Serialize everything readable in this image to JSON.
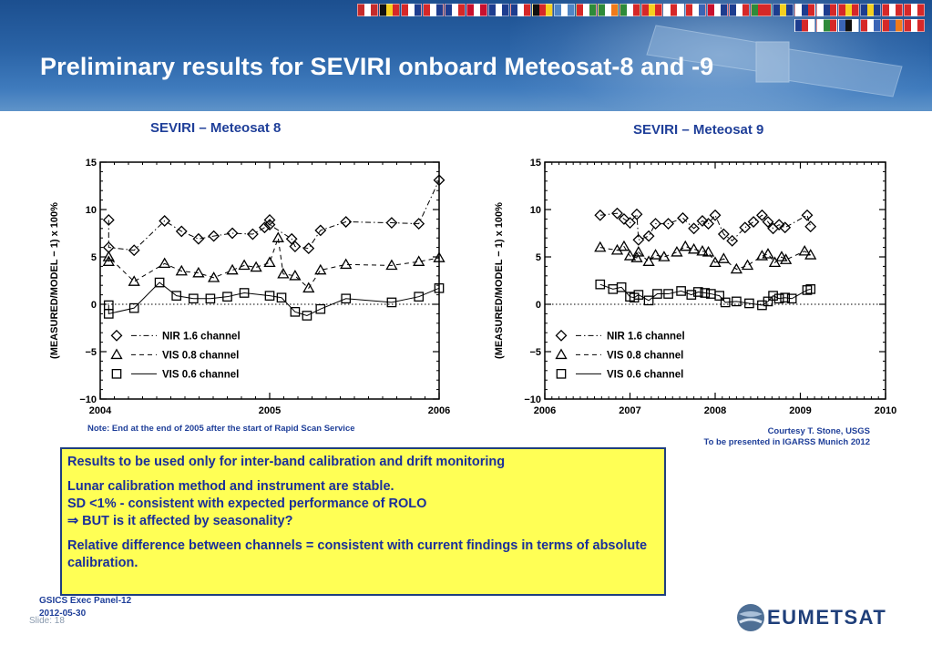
{
  "header": {
    "title": "Preliminary results for SEVIRI onboard Meteosat-8 and -9",
    "flags": [
      [
        "#c62b2b",
        "#ffffff",
        "#c62b2b"
      ],
      [
        "#111111",
        "#f5d020",
        "#d62828"
      ],
      [
        "#d62828",
        "#ffffff",
        "#1d3d8f"
      ],
      [
        "#d62828",
        "#ffffff",
        "#1d3d8f"
      ],
      [
        "#1d3d8f",
        "#ffffff",
        "#d62828"
      ],
      [
        "#c8102e",
        "#ffffff",
        "#c8102e"
      ],
      [
        "#1d3d8f",
        "#ffffff",
        "#1d3d8f"
      ],
      [
        "#1d3d8f",
        "#ffffff",
        "#d62828"
      ],
      [
        "#111111",
        "#d62828",
        "#f5d020"
      ],
      [
        "#4f86c6",
        "#ffffff",
        "#4f86c6"
      ],
      [
        "#d62828",
        "#ffffff",
        "#2e8b3a"
      ],
      [
        "#2e8b3a",
        "#ffffff",
        "#f07a1a"
      ],
      [
        "#2e8b3a",
        "#ffffff",
        "#d62828"
      ],
      [
        "#d62828",
        "#f5d020",
        "#d62828"
      ],
      [
        "#ffffff",
        "#d62828",
        "#ffffff"
      ],
      [
        "#d62828",
        "#ffffff",
        "#3a64b5"
      ],
      [
        "#c8102e",
        "#ffffff",
        "#1d3d8f"
      ],
      [
        "#1d3d8f",
        "#ffffff",
        "#d62828"
      ],
      [
        "#2e8b3a",
        "#d62828",
        "#d62828"
      ],
      [
        "#1d3d8f",
        "#f5d020",
        "#1d3d8f"
      ],
      [
        "#ffffff",
        "#1d3d8f",
        "#d62828"
      ],
      [
        "#ffffff",
        "#1d3d8f",
        "#d62828"
      ],
      [
        "#d62828",
        "#f5d020",
        "#d62828"
      ],
      [
        "#1d3d8f",
        "#f5d020",
        "#1d3d8f"
      ],
      [
        "#d62828",
        "#ffffff",
        "#d62828"
      ],
      [
        "#d62828",
        "#ffffff",
        "#d62828"
      ],
      [
        "#1d3d8f",
        "#d62828",
        "#ffffff"
      ],
      [
        "#ffffff",
        "#2e8b3a",
        "#d62828"
      ],
      [
        "#3a64b5",
        "#111111",
        "#ffffff"
      ],
      [
        "#d62828",
        "#ffffff",
        "#3a64b5"
      ],
      [
        "#d62828",
        "#3a64b5",
        "#f07a1a"
      ],
      [
        "#d62828",
        "#ffffff",
        "#d62828"
      ]
    ]
  },
  "left_panel": {
    "subtitle": "SEVIRI – Meteosat 8",
    "note": "Note: End at the end of 2005 after the start of Rapid Scan Service"
  },
  "right_panel": {
    "subtitle": "SEVIRI – Meteosat 9",
    "courtesy": "Courtesy T. Stone, USGS",
    "presented": "To be presented in IGARSS Munich 2012"
  },
  "textbox": {
    "line1": "Results to be used only for inter-band calibration and drift monitoring",
    "line2": "Lunar calibration method and instrument are stable.",
    "line3": "SD <1% - consistent with expected performance of ROLO",
    "line4": "⇒ BUT is it affected by seasonality?",
    "line5": "Relative difference between channels = consistent with current findings in terms of absolute calibration."
  },
  "footer": {
    "line1": "GSICS Exec Panel-12",
    "line2": "2012-05-30",
    "slide": "Slide: 18",
    "logo": "EUMETSAT"
  },
  "chart_data": [
    {
      "type": "scatter",
      "ylabel": "(MEASURED/MODEL − 1) x 100%",
      "xlim": [
        2004,
        2006
      ],
      "ylim": [
        -10,
        15
      ],
      "xticks": [
        "2004",
        "2005",
        "2006"
      ],
      "yticks": [
        "−10",
        "−5",
        "0",
        "5",
        "10",
        "15"
      ],
      "grid": false,
      "legend_position": "lower-left",
      "series": [
        {
          "name": "NIR 1.6 channel",
          "marker": "diamond",
          "line": "dashdot",
          "x": [
            2004.05,
            2004.05,
            2004.2,
            2004.38,
            2004.48,
            2004.58,
            2004.67,
            2004.78,
            2004.9,
            2004.97,
            2005.0,
            2005.0,
            2005.13,
            2005.15,
            2005.23,
            2005.3,
            2005.45,
            2005.72,
            2005.88,
            2006.0
          ],
          "y": [
            8.9,
            6.0,
            5.7,
            8.8,
            7.7,
            6.9,
            7.2,
            7.5,
            7.4,
            8.1,
            8.9,
            8.4,
            6.9,
            6.1,
            5.9,
            7.8,
            8.7,
            8.6,
            8.5,
            13.1
          ]
        },
        {
          "name": "VIS 0.8 channel",
          "marker": "triangle",
          "line": "dashed",
          "x": [
            2004.05,
            2004.05,
            2004.2,
            2004.38,
            2004.48,
            2004.58,
            2004.67,
            2004.78,
            2004.85,
            2004.92,
            2005.0,
            2005.05,
            2005.08,
            2005.15,
            2005.23,
            2005.3,
            2005.45,
            2005.72,
            2005.88,
            2006.0
          ],
          "y": [
            4.5,
            5.0,
            2.4,
            4.3,
            3.5,
            3.3,
            2.8,
            3.6,
            4.1,
            3.9,
            4.4,
            7.0,
            3.2,
            3.0,
            1.7,
            3.6,
            4.2,
            4.1,
            4.5,
            4.9
          ]
        },
        {
          "name": "VIS 0.6 channel",
          "marker": "square",
          "line": "solid",
          "x": [
            2004.05,
            2004.05,
            2004.2,
            2004.35,
            2004.45,
            2004.55,
            2004.65,
            2004.75,
            2004.85,
            2005.0,
            2005.07,
            2005.15,
            2005.22,
            2005.3,
            2005.45,
            2005.72,
            2005.88,
            2006.0
          ],
          "y": [
            -0.1,
            -1.0,
            -0.4,
            2.3,
            0.9,
            0.6,
            0.6,
            0.8,
            1.2,
            0.9,
            0.7,
            -0.8,
            -1.2,
            -0.5,
            0.6,
            0.2,
            0.8,
            1.7
          ]
        }
      ]
    },
    {
      "type": "scatter",
      "ylabel": "(MEASURED/MODEL − 1) x 100%",
      "xlim": [
        2006,
        2010
      ],
      "ylim": [
        -10,
        15
      ],
      "xticks": [
        "2006",
        "2007",
        "2008",
        "2009",
        "2010"
      ],
      "yticks": [
        "−10",
        "−5",
        "0",
        "5",
        "10",
        "15"
      ],
      "grid": false,
      "legend_position": "lower-left",
      "series": [
        {
          "name": "NIR 1.6 channel",
          "marker": "diamond",
          "line": "dashdot",
          "x": [
            2006.65,
            2006.85,
            2006.93,
            2007.0,
            2007.08,
            2007.1,
            2007.22,
            2007.3,
            2007.45,
            2007.62,
            2007.75,
            2007.85,
            2007.92,
            2008.0,
            2008.1,
            2008.2,
            2008.35,
            2008.45,
            2008.55,
            2008.62,
            2008.68,
            2008.75,
            2008.82,
            2009.08,
            2009.12
          ],
          "y": [
            9.4,
            9.6,
            9.0,
            8.6,
            9.5,
            6.8,
            7.2,
            8.5,
            8.5,
            9.1,
            8.0,
            8.8,
            8.5,
            9.4,
            7.4,
            6.7,
            8.1,
            8.7,
            9.4,
            8.7,
            8.0,
            8.4,
            8.1,
            9.4,
            8.2
          ]
        },
        {
          "name": "VIS 0.8 channel",
          "marker": "triangle",
          "line": "dashed",
          "x": [
            2006.65,
            2006.85,
            2006.93,
            2007.0,
            2007.08,
            2007.1,
            2007.22,
            2007.3,
            2007.4,
            2007.55,
            2007.65,
            2007.75,
            2007.85,
            2007.92,
            2008.0,
            2008.1,
            2008.25,
            2008.38,
            2008.55,
            2008.62,
            2008.7,
            2008.78,
            2008.83,
            2009.05,
            2009.12
          ],
          "y": [
            6.0,
            5.7,
            6.1,
            5.1,
            4.9,
            5.5,
            4.5,
            5.2,
            5.0,
            5.5,
            6.1,
            5.8,
            5.6,
            5.5,
            4.4,
            4.8,
            3.7,
            4.1,
            5.1,
            5.3,
            4.4,
            5.0,
            4.7,
            5.6,
            5.2
          ]
        },
        {
          "name": "VIS 0.6 channel",
          "marker": "square",
          "line": "solid",
          "x": [
            2006.65,
            2006.8,
            2006.9,
            2007.0,
            2007.05,
            2007.1,
            2007.22,
            2007.32,
            2007.45,
            2007.6,
            2007.72,
            2007.8,
            2007.88,
            2007.95,
            2008.05,
            2008.12,
            2008.25,
            2008.4,
            2008.55,
            2008.62,
            2008.68,
            2008.75,
            2008.82,
            2008.9,
            2009.08,
            2009.12
          ],
          "y": [
            2.1,
            1.6,
            1.8,
            0.8,
            0.7,
            1.0,
            0.4,
            1.1,
            1.1,
            1.4,
            1.0,
            1.3,
            1.2,
            1.1,
            0.9,
            0.2,
            0.3,
            0.1,
            -0.1,
            0.3,
            0.9,
            0.6,
            0.7,
            0.6,
            1.5,
            1.6
          ]
        }
      ]
    }
  ]
}
